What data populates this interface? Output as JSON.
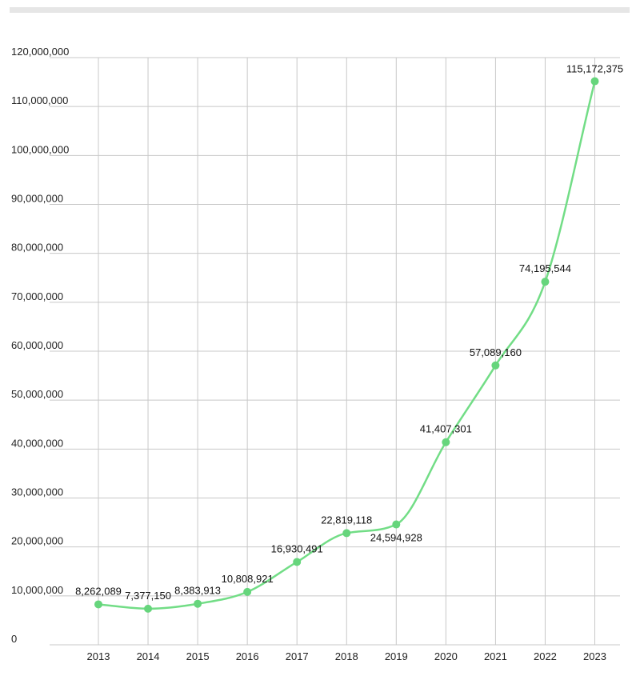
{
  "chart_data": {
    "type": "line",
    "categories": [
      "2013",
      "2014",
      "2015",
      "2016",
      "2017",
      "2018",
      "2019",
      "2020",
      "2021",
      "2022",
      "2023"
    ],
    "series": [
      {
        "values": [
          8262089,
          7377150,
          8383913,
          10808921,
          16930491,
          22819118,
          24594928,
          41407301,
          57089160,
          74195544,
          115172375
        ]
      }
    ],
    "data_labels": [
      "8,262,089",
      "7,377,150",
      "8,383,913",
      "10,808,921",
      "16,930,491",
      "22,819,118",
      "24,594,928",
      "41,407,301",
      "57,089,160",
      "74,195,544",
      "115,172,375"
    ],
    "y_ticks": [
      0,
      10000000,
      20000000,
      30000000,
      40000000,
      50000000,
      60000000,
      70000000,
      80000000,
      90000000,
      100000000,
      110000000,
      120000000
    ],
    "y_tick_labels": [
      "0",
      "10,000,000",
      "20,000,000",
      "30,000,000",
      "40,000,000",
      "50,000,000",
      "60,000,000",
      "70,000,000",
      "80,000,000",
      "90,000,000",
      "100,000,000",
      "110,000,000",
      "120,000,000"
    ],
    "ylim": [
      0,
      120000000
    ],
    "title": "",
    "xlabel": "",
    "ylabel": "",
    "grid": true,
    "line_style": "smooth",
    "colors": {
      "line": "#72dd86",
      "marker": "#66d57c",
      "grid": "#c8c8c8",
      "topbar": "#e6e6e6"
    }
  }
}
